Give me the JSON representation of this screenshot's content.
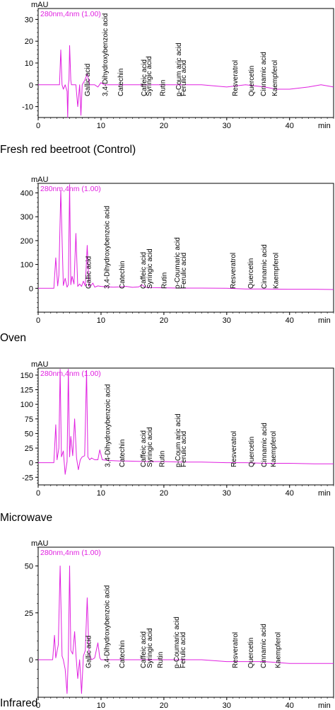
{
  "chart_data": [
    {
      "type": "line",
      "caption": "Fresh red beetroot (Control)",
      "legend": "280nm,4nm (1.00)",
      "xlabel": "min",
      "ylabel": "mAU",
      "xlim": [
        0,
        47
      ],
      "ylim": [
        -15,
        35
      ],
      "xticks": [
        0,
        10,
        20,
        30,
        40
      ],
      "yticks": [
        -10,
        0,
        10,
        20,
        30
      ],
      "series": [
        {
          "color": "#e020e0",
          "x": [
            0,
            2,
            3.4,
            3.6,
            3.8,
            4.0,
            4.3,
            4.6,
            4.7,
            4.8,
            4.9,
            5.0,
            5.2,
            5.3,
            5.5,
            6.0,
            6.3,
            6.6,
            6.8,
            7.0,
            7.4,
            7.8,
            8.2,
            9.0,
            9.5,
            10.0,
            10.5,
            12.5,
            13.0,
            14.0,
            17.0,
            20.0,
            23.0,
            26.0,
            30.0,
            33.0,
            36.0,
            38.0,
            40.0,
            43.0,
            45.0,
            47.0
          ],
          "y": [
            0,
            0,
            0,
            16,
            0,
            -2,
            0,
            -3,
            -15,
            0,
            2,
            18,
            2,
            0,
            0,
            0,
            -10,
            0,
            -14,
            0,
            2,
            5,
            0,
            0,
            -1,
            1,
            0,
            0,
            0,
            0,
            0,
            0,
            0,
            0,
            -1,
            0,
            -1,
            -2,
            -2,
            -1,
            0,
            -1
          ]
        }
      ],
      "annotations": [
        {
          "label": "Gallic acid",
          "x": 7.8
        },
        {
          "label": "3,4-Dihydroxybenzoic acid",
          "x": 10.6
        },
        {
          "label": "Catechin",
          "x": 13.1
        },
        {
          "label": "Caffeic acid",
          "x": 16.8
        },
        {
          "label": "Syringic acid",
          "x": 17.6
        },
        {
          "label": "Rutin",
          "x": 19.8
        },
        {
          "label": "p-Coum aric acid",
          "x": 22.3
        },
        {
          "label": "Ferulic acid",
          "x": 23.1
        },
        {
          "label": "Resveratrol",
          "x": 31.3
        },
        {
          "label": "Quercetin",
          "x": 33.9
        },
        {
          "label": "Cinnamic acid",
          "x": 35.8
        },
        {
          "label": "Kaempferol",
          "x": 37.6
        }
      ]
    },
    {
      "type": "line",
      "caption": "Oven",
      "legend": "280nm,4nm (1.00)",
      "xlabel": "min",
      "ylabel": "mAU",
      "xlim": [
        0,
        47
      ],
      "ylim": [
        -100,
        440
      ],
      "xticks": [
        0,
        10,
        20,
        30,
        40
      ],
      "yticks": [
        0,
        100,
        200,
        300,
        400
      ],
      "series": [
        {
          "color": "#e020e0",
          "x": [
            0,
            2.5,
            2.8,
            3.1,
            3.3,
            3.6,
            4.0,
            4.3,
            4.6,
            4.8,
            5.0,
            5.2,
            5.4,
            5.7,
            6.0,
            6.3,
            6.6,
            6.9,
            7.2,
            7.5,
            7.8,
            8.1,
            8.4,
            8.7,
            9.0,
            9.5,
            10.0,
            11.0,
            12.0,
            13.0,
            14.0,
            15.0,
            16.0,
            16.5,
            17.0,
            18.0,
            20.0,
            23.0,
            26.0,
            30.0,
            33.0,
            36.0,
            40.0,
            44.0,
            47.0
          ],
          "y": [
            0,
            0,
            128,
            10,
            55,
            410,
            12,
            42,
            5,
            15,
            435,
            15,
            50,
            18,
            230,
            8,
            18,
            8,
            30,
            10,
            180,
            8,
            12,
            22,
            5,
            10,
            8,
            6,
            5,
            6,
            8,
            4,
            6,
            15,
            4,
            3,
            2,
            1,
            1,
            0,
            -3,
            -3,
            -4,
            -4,
            -5
          ]
        }
      ],
      "annotations": [
        {
          "label": "Gallic acid",
          "x": 8.0
        },
        {
          "label": "3,4-Dihydroxybenzoic acid",
          "x": 10.9
        },
        {
          "label": "Catechin",
          "x": 13.3
        },
        {
          "label": "Caffeic acid",
          "x": 16.7
        },
        {
          "label": "Syringic acid",
          "x": 17.7
        },
        {
          "label": "Rutin",
          "x": 20.0
        },
        {
          "label": "p-Coumaric acid",
          "x": 22.1
        },
        {
          "label": "Ferulic acid",
          "x": 23.1
        },
        {
          "label": "Resveratrol",
          "x": 31.0
        },
        {
          "label": "Quercetin",
          "x": 33.8
        },
        {
          "label": "Cinnamic acid",
          "x": 35.9
        },
        {
          "label": "Kaempferol",
          "x": 37.8
        }
      ]
    },
    {
      "type": "line",
      "caption": "Microwave",
      "legend": "280nm,4nm (1.00)",
      "xlabel": "min",
      "ylabel": "mAU",
      "xlim": [
        0,
        47
      ],
      "ylim": [
        -38,
        162
      ],
      "xticks": [
        0,
        10,
        20,
        30,
        40
      ],
      "yticks": [
        -25,
        0,
        25,
        50,
        75,
        100,
        125,
        150
      ],
      "series": [
        {
          "color": "#e020e0",
          "x": [
            0,
            2.5,
            2.8,
            3.0,
            3.3,
            3.5,
            3.7,
            4.0,
            4.3,
            4.6,
            4.8,
            5.0,
            5.2,
            5.5,
            5.8,
            6.1,
            6.4,
            6.7,
            7.0,
            7.4,
            7.7,
            7.9,
            8.2,
            8.5,
            9.0,
            9.5,
            9.8,
            10.2,
            11.0,
            13.0,
            14.0,
            17.0,
            20.0,
            23.0,
            26.0,
            30.0,
            33.0,
            36.0,
            40.0,
            44.0,
            47.0
          ],
          "y": [
            0,
            0,
            65,
            5,
            25,
            160,
            10,
            20,
            -20,
            2,
            160,
            10,
            45,
            12,
            75,
            8,
            -12,
            5,
            10,
            12,
            158,
            10,
            5,
            8,
            5,
            5,
            22,
            5,
            4,
            3,
            3,
            2,
            2,
            1,
            1,
            0,
            0,
            -1,
            -1,
            -2,
            -2
          ]
        }
      ],
      "annotations": [
        {
          "label": "3,4-Dihydroxybenzoic acid",
          "x": 11.0
        },
        {
          "label": "Catechin",
          "x": 13.3
        },
        {
          "label": "Caffeic acid",
          "x": 16.7
        },
        {
          "label": "Syringic acid",
          "x": 17.7
        },
        {
          "label": "Rutin",
          "x": 19.7
        },
        {
          "label": "p-Coum aric acid",
          "x": 22.2
        },
        {
          "label": "Ferulic acid",
          "x": 23.1
        },
        {
          "label": "Resveratrol",
          "x": 31.1
        },
        {
          "label": "Quercetin",
          "x": 33.9
        },
        {
          "label": "Cinnamic acid",
          "x": 35.9
        },
        {
          "label": "Kaempferol",
          "x": 37.4
        }
      ]
    },
    {
      "type": "line",
      "caption": "Infrared",
      "legend": "280nm,4nm (1.00)",
      "xlabel": "min",
      "ylabel": "mAU",
      "xlim": [
        0,
        47
      ],
      "ylim": [
        -20,
        60
      ],
      "xticks": [
        0,
        10,
        20,
        30,
        40
      ],
      "yticks": [
        -25,
        0,
        25,
        50
      ],
      "series": [
        {
          "color": "#e020e0",
          "x": [
            0,
            2.3,
            2.6,
            2.8,
            3.2,
            3.5,
            3.8,
            4.0,
            4.3,
            4.6,
            4.8,
            5.0,
            5.2,
            5.5,
            5.8,
            6.0,
            6.3,
            6.6,
            6.9,
            7.2,
            7.5,
            7.8,
            8.1,
            8.5,
            9.0,
            9.5,
            9.8,
            10.0,
            10.5,
            12.0,
            14.0,
            17.0,
            20.0,
            23.0,
            26.0,
            30.0,
            33.0,
            36.0,
            40.0,
            44.0,
            47.0
          ],
          "y": [
            0,
            0,
            13,
            1,
            8,
            50,
            2,
            0,
            -5,
            -18,
            2,
            50,
            5,
            3,
            15,
            3,
            -10,
            0,
            -18,
            2,
            5,
            33,
            3,
            0,
            1,
            9,
            1,
            0,
            0,
            0,
            0,
            0,
            0,
            0,
            0,
            -1,
            -1,
            -1,
            -2,
            -2,
            -2
          ]
        }
      ],
      "annotations": [
        {
          "label": "Gallic acid",
          "x": 8.0
        },
        {
          "label": "3,4-Dihydroxybenzoic acid",
          "x": 10.9
        },
        {
          "label": "Catechin",
          "x": 13.3
        },
        {
          "label": "Caffeic acid",
          "x": 16.7
        },
        {
          "label": "Syringic acid",
          "x": 17.7
        },
        {
          "label": "Rutin",
          "x": 19.4
        },
        {
          "label": "p-Coumaric acid",
          "x": 22.0
        },
        {
          "label": "Ferulic acid",
          "x": 23.0
        },
        {
          "label": "Resveratrol",
          "x": 31.3
        },
        {
          "label": "Quercetin",
          "x": 33.8
        },
        {
          "label": "Cinnamic acid",
          "x": 35.8
        },
        {
          "label": "Kaempferol",
          "x": 38.1
        }
      ]
    }
  ]
}
